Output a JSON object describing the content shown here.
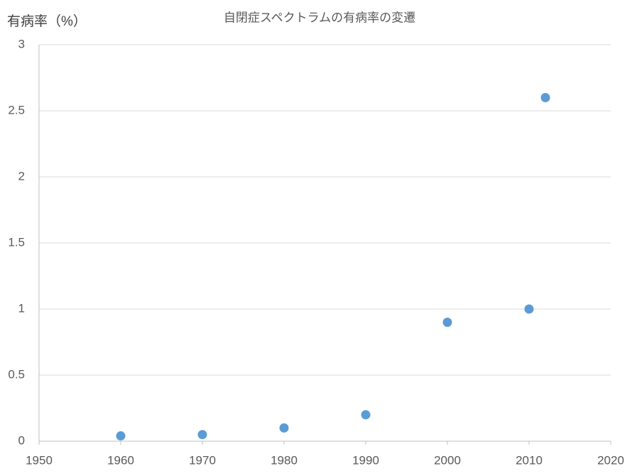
{
  "chart_data": {
    "type": "scatter",
    "title": "自閉症スペクトラムの有病率の変遷",
    "y_label": "有病率（%）",
    "series": [
      {
        "color": "#5b9bd5",
        "x": [
          1960,
          1970,
          1980,
          1990,
          2000,
          2010,
          2012
        ],
        "values": [
          0.04,
          0.05,
          0.1,
          0.2,
          0.9,
          1.0,
          2.6
        ]
      }
    ],
    "xlim": [
      1950,
      2020
    ],
    "xticks": [
      1950,
      1960,
      1970,
      1980,
      1990,
      2000,
      2010,
      2020
    ],
    "ylim": [
      0,
      3
    ],
    "yticks": [
      0,
      0.5,
      1,
      1.5,
      2,
      2.5,
      3
    ],
    "grid": true
  }
}
